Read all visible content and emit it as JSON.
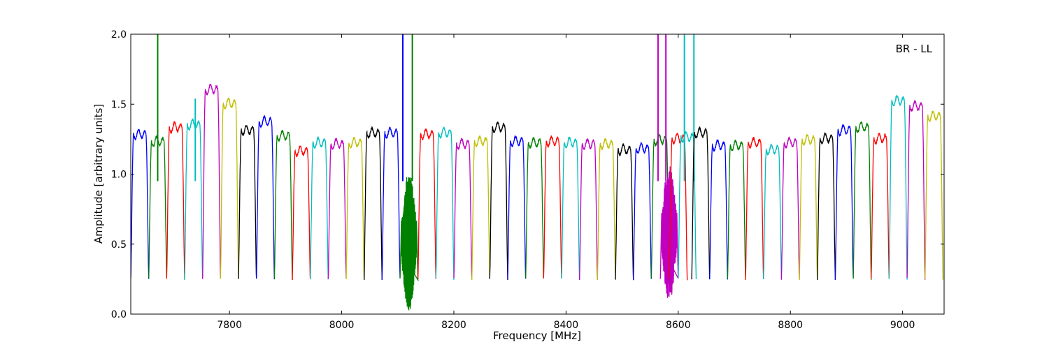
{
  "chart_data": {
    "type": "line",
    "xlabel": "Frequency [MHz]",
    "ylabel": "Amplitude [arbitrary units]",
    "annotation": "BR - LL",
    "annotation_position": "top-right",
    "xlim": [
      7624,
      9074
    ],
    "ylim": [
      0.0,
      2.0
    ],
    "x_ticks": [
      7800,
      8000,
      8200,
      8400,
      8600,
      8800,
      9000
    ],
    "y_ticks": [
      0.0,
      0.5,
      1.0,
      1.5,
      2.0
    ],
    "x_tick_labels": [
      "7800",
      "8000",
      "8200",
      "8400",
      "8600",
      "8800",
      "9000"
    ],
    "y_tick_labels": [
      "0.0",
      "0.5",
      "1.0",
      "1.5",
      "2.0"
    ],
    "grid": false,
    "colors": [
      "#0000ff",
      "#008000",
      "#ff0000",
      "#00bfbf",
      "#bf00bf",
      "#bfbf00",
      "#000000"
    ],
    "channel_width_mhz": 32,
    "channels": [
      {
        "start": 7624,
        "peak": 1.29,
        "color": "#0000ff"
      },
      {
        "start": 7656,
        "peak": 1.24,
        "color": "#008000",
        "spikes": [
          {
            "x": 7672,
            "y": 2.0
          }
        ]
      },
      {
        "start": 7688,
        "peak": 1.34,
        "color": "#ff0000"
      },
      {
        "start": 7720,
        "peak": 1.36,
        "color": "#00bfbf",
        "spikes": [
          {
            "x": 7739,
            "y": 1.54
          }
        ]
      },
      {
        "start": 7752,
        "peak": 1.61,
        "color": "#bf00bf"
      },
      {
        "start": 7784,
        "peak": 1.51,
        "color": "#bfbf00"
      },
      {
        "start": 7816,
        "peak": 1.32,
        "color": "#000000"
      },
      {
        "start": 7848,
        "peak": 1.38,
        "color": "#0000ff"
      },
      {
        "start": 7880,
        "peak": 1.28,
        "color": "#008000"
      },
      {
        "start": 7912,
        "peak": 1.17,
        "color": "#ff0000"
      },
      {
        "start": 7944,
        "peak": 1.23,
        "color": "#00bfbf"
      },
      {
        "start": 7976,
        "peak": 1.22,
        "color": "#bf00bf"
      },
      {
        "start": 8008,
        "peak": 1.23,
        "color": "#bfbf00"
      },
      {
        "start": 8040,
        "peak": 1.3,
        "color": "#000000"
      },
      {
        "start": 8072,
        "peak": 1.3,
        "color": "#0000ff",
        "spikes": [
          {
            "x": 8109,
            "y": 2.0
          }
        ]
      },
      {
        "start": 8104,
        "peak": 0.95,
        "color": "#008000",
        "noisy": true,
        "spikes": [
          {
            "x": 8126,
            "y": 2.0
          }
        ]
      },
      {
        "start": 8136,
        "peak": 1.29,
        "color": "#ff0000"
      },
      {
        "start": 8168,
        "peak": 1.3,
        "color": "#00bfbf"
      },
      {
        "start": 8200,
        "peak": 1.22,
        "color": "#bf00bf"
      },
      {
        "start": 8232,
        "peak": 1.24,
        "color": "#bfbf00"
      },
      {
        "start": 8264,
        "peak": 1.34,
        "color": "#000000"
      },
      {
        "start": 8296,
        "peak": 1.24,
        "color": "#0000ff"
      },
      {
        "start": 8328,
        "peak": 1.23,
        "color": "#008000"
      },
      {
        "start": 8360,
        "peak": 1.24,
        "color": "#ff0000"
      },
      {
        "start": 8392,
        "peak": 1.23,
        "color": "#00bfbf"
      },
      {
        "start": 8424,
        "peak": 1.22,
        "color": "#bf00bf"
      },
      {
        "start": 8456,
        "peak": 1.22,
        "color": "#bfbf00"
      },
      {
        "start": 8488,
        "peak": 1.18,
        "color": "#000000"
      },
      {
        "start": 8520,
        "peak": 1.19,
        "color": "#0000ff"
      },
      {
        "start": 8552,
        "peak": 1.25,
        "color": "#008000"
      },
      {
        "start": 8568,
        "peak": 1.05,
        "color": "#bf00bf",
        "noisy": true,
        "spikes": [
          {
            "x": 8564,
            "y": 2.0
          },
          {
            "x": 8578,
            "y": 2.0
          }
        ]
      },
      {
        "start": 8584,
        "peak": 1.26,
        "color": "#ff0000"
      },
      {
        "start": 8600,
        "peak": 1.27,
        "color": "#00bfbf",
        "spikes": [
          {
            "x": 8611,
            "y": 2.0
          },
          {
            "x": 8628,
            "y": 2.0
          }
        ]
      },
      {
        "start": 8624,
        "peak": 1.3,
        "color": "#000000"
      },
      {
        "start": 8656,
        "peak": 1.21,
        "color": "#0000ff"
      },
      {
        "start": 8688,
        "peak": 1.21,
        "color": "#008000"
      },
      {
        "start": 8720,
        "peak": 1.23,
        "color": "#ff0000"
      },
      {
        "start": 8752,
        "peak": 1.18,
        "color": "#00bfbf"
      },
      {
        "start": 8784,
        "peak": 1.23,
        "color": "#bf00bf"
      },
      {
        "start": 8816,
        "peak": 1.25,
        "color": "#bfbf00"
      },
      {
        "start": 8848,
        "peak": 1.26,
        "color": "#000000"
      },
      {
        "start": 8880,
        "peak": 1.32,
        "color": "#0000ff"
      },
      {
        "start": 8912,
        "peak": 1.34,
        "color": "#008000"
      },
      {
        "start": 8944,
        "peak": 1.26,
        "color": "#ff0000"
      },
      {
        "start": 8976,
        "peak": 1.53,
        "color": "#00bfbf"
      },
      {
        "start": 9008,
        "peak": 1.49,
        "color": "#bf00bf"
      },
      {
        "start": 9040,
        "peak": 1.42,
        "color": "#bfbf00"
      }
    ]
  }
}
